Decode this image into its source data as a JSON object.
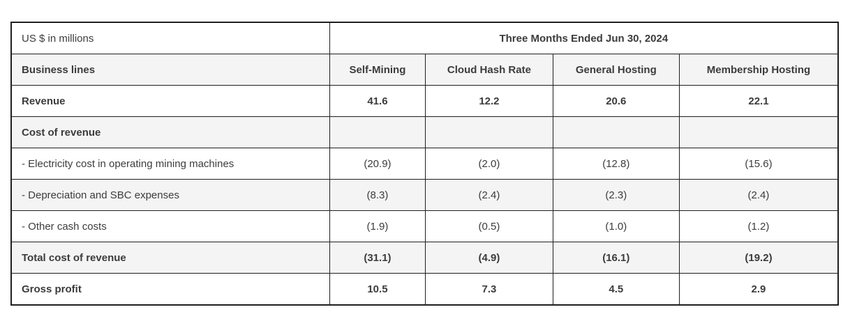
{
  "table": {
    "unit_label": "US $ in millions",
    "period_header": "Three Months Ended Jun 30, 2024",
    "row_header_label": "Business lines",
    "columns": [
      "Self-Mining",
      "Cloud Hash Rate",
      "General Hosting",
      "Membership Hosting"
    ],
    "rows": [
      {
        "label": "Revenue",
        "values": [
          "41.6",
          "12.2",
          "20.6",
          "22.1"
        ]
      },
      {
        "label": "Cost of revenue",
        "values": [
          "",
          "",
          "",
          ""
        ]
      },
      {
        "label": "- Electricity cost in operating mining machines",
        "values": [
          "(20.9)",
          "(2.0)",
          "(12.8)",
          "(15.6)"
        ]
      },
      {
        "label": "- Depreciation and SBC expenses",
        "values": [
          "(8.3)",
          "(2.4)",
          "(2.3)",
          "(2.4)"
        ]
      },
      {
        "label": "- Other cash costs",
        "values": [
          "(1.9)",
          "(0.5)",
          "(1.0)",
          "(1.2)"
        ]
      },
      {
        "label": "Total cost of revenue",
        "values": [
          "(31.1)",
          "(4.9)",
          "(16.1)",
          "(19.2)"
        ]
      },
      {
        "label": "Gross profit",
        "values": [
          "10.5",
          "7.3",
          "4.5",
          "2.9"
        ]
      }
    ],
    "colors": {
      "stripe_background": "#f4f4f4",
      "border": "#1f1f1f",
      "text": "#3c3c3c",
      "bold_text": "#212121"
    }
  }
}
